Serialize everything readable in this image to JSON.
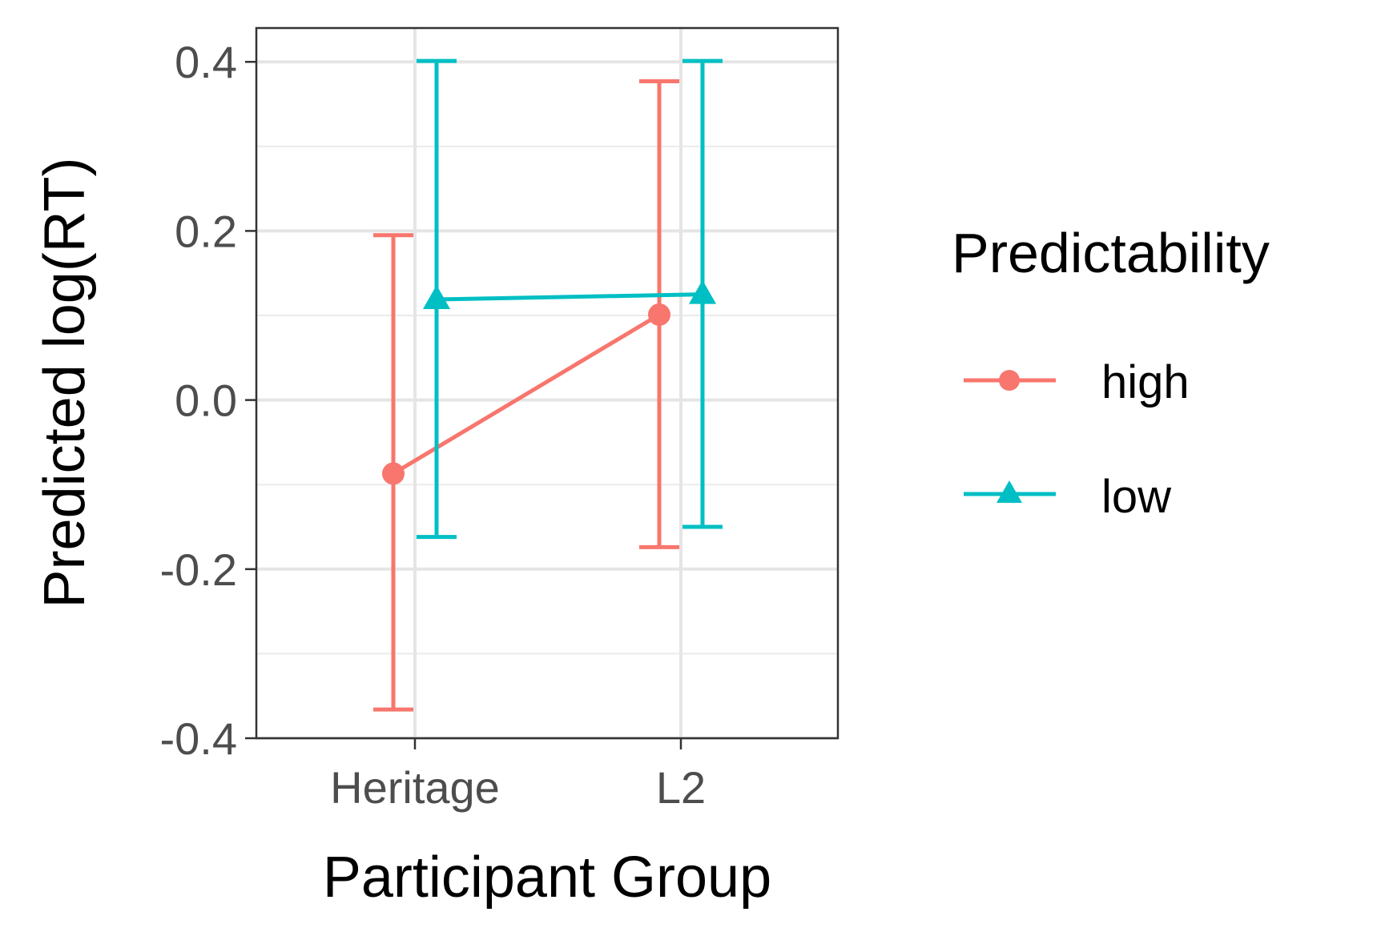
{
  "chart_data": {
    "type": "line",
    "title": "",
    "xlabel": "Participant Group",
    "ylabel": "Predicted log(RT)",
    "categories": [
      "Heritage",
      "L2"
    ],
    "ylim": [
      -0.4,
      0.44
    ],
    "yticks": [
      "0.4",
      "0.2",
      "0.0",
      "-0.2",
      "-0.4"
    ],
    "ytick_values": [
      0.4,
      0.2,
      0.0,
      -0.2,
      -0.4
    ],
    "grid": true,
    "legend": {
      "title": "Predictability",
      "placement": "right"
    },
    "series": [
      {
        "name": "high",
        "color": "#F8766D",
        "marker": "circle",
        "values": [
          -0.087,
          0.101
        ],
        "ci_low": [
          -0.366,
          -0.174
        ],
        "ci_high": [
          0.195,
          0.377
        ]
      },
      {
        "name": "low",
        "color": "#00BFC4",
        "marker": "triangle",
        "values": [
          0.119,
          0.125
        ],
        "ci_low": [
          -0.162,
          -0.15
        ],
        "ci_high": [
          0.401,
          0.401
        ]
      }
    ]
  }
}
